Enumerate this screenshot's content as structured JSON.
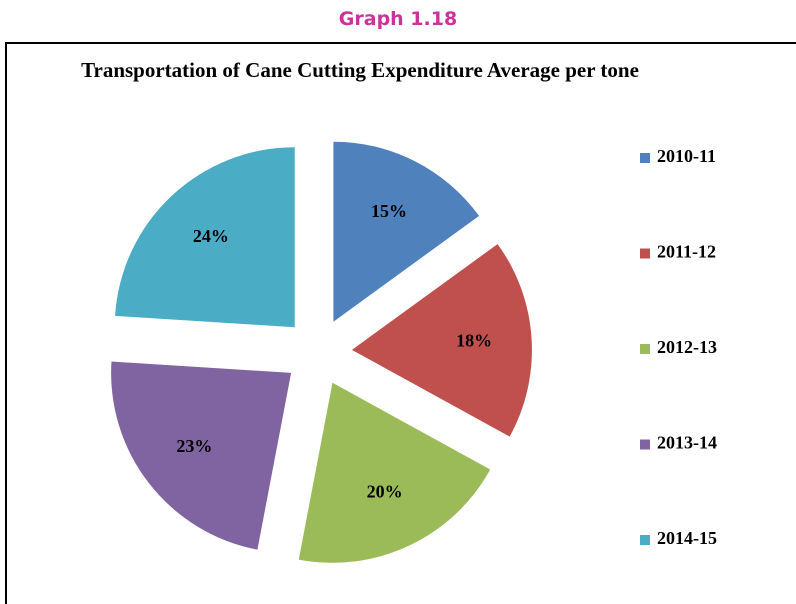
{
  "heading": "Graph 1.18",
  "chart_data": {
    "type": "pie",
    "title": "Transportation of Cane Cutting Expenditure Average per tone",
    "categories": [
      "2010-11",
      "2011-12",
      "2012-13",
      "2013-14",
      "2014-15"
    ],
    "values": [
      15,
      18,
      20,
      23,
      24
    ],
    "value_labels": [
      "15%",
      "18%",
      "20%",
      "23%",
      "24%"
    ],
    "colors": [
      "#4f81bd",
      "#c0504d",
      "#9bbb59",
      "#8064a2",
      "#4bacc6"
    ],
    "legend": "right"
  }
}
